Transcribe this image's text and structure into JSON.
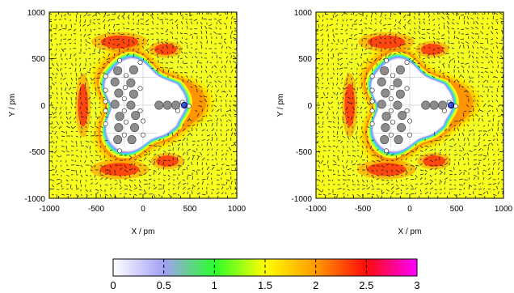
{
  "chart_data": {
    "type": "heatmap",
    "panels": [
      {
        "xlabel": "X / pm",
        "ylabel": "Y / pm",
        "xlim": [
          -1000,
          1000
        ],
        "ylim": [
          -1000,
          1000
        ],
        "x_ticks": [
          "-1000",
          "-500",
          "0",
          "500",
          "1000"
        ],
        "y_ticks": [
          "1000",
          "500",
          "0",
          "-500",
          "-1000"
        ],
        "grid": false,
        "overlay": "density map with flow-vector arrows and atom positions"
      },
      {
        "xlabel": "X / pm",
        "ylabel": "Y / pm",
        "xlim": [
          -1000,
          1000
        ],
        "ylim": [
          -1000,
          1000
        ],
        "x_ticks": [
          "-1000",
          "-500",
          "0",
          "500",
          "1000"
        ],
        "y_ticks": [
          "1000",
          "500",
          "0",
          "-500",
          "-1000"
        ],
        "grid": false,
        "overlay": "density map with flow-vector arrows and atom positions"
      }
    ],
    "colorbar": {
      "range": [
        0,
        3
      ],
      "tick_labels": [
        "0",
        "0.5",
        "1",
        "1.5",
        "2",
        "2.5",
        "3"
      ],
      "colors": [
        "#ffffff",
        "#a2a0f6",
        "#2aff2a",
        "#ffff00",
        "#ff9900",
        "#ff0a0a",
        "#ff00ff"
      ]
    },
    "atoms": {
      "large_gray": [
        [
          -270,
          370
        ],
        [
          -100,
          380
        ],
        [
          -300,
          250
        ],
        [
          -130,
          240
        ],
        [
          -260,
          130
        ],
        [
          -100,
          120
        ],
        [
          -300,
          10
        ],
        [
          -130,
          0
        ],
        [
          170,
          0
        ],
        [
          260,
          0
        ],
        [
          350,
          0
        ],
        [
          -250,
          -120
        ],
        [
          -80,
          -110
        ],
        [
          -260,
          -240
        ],
        [
          -90,
          -240
        ],
        [
          -120,
          -370
        ],
        [
          -270,
          -370
        ]
      ],
      "small_white": [
        [
          -250,
          480
        ],
        [
          -400,
          310
        ],
        [
          -30,
          460
        ],
        [
          -180,
          320
        ],
        [
          -400,
          160
        ],
        [
          -190,
          190
        ],
        [
          -30,
          180
        ],
        [
          -400,
          40
        ],
        [
          -200,
          70
        ],
        [
          -400,
          -60
        ],
        [
          -200,
          -60
        ],
        [
          -30,
          -60
        ],
        [
          -400,
          -200
        ],
        [
          -180,
          -180
        ],
        [
          0,
          -170
        ],
        [
          -200,
          -320
        ],
        [
          -250,
          -490
        ],
        [
          0,
          -320
        ],
        [
          420,
          30
        ],
        [
          490,
          -10
        ],
        [
          370,
          -60
        ]
      ],
      "blue": [
        [
          440,
          0
        ]
      ]
    }
  }
}
